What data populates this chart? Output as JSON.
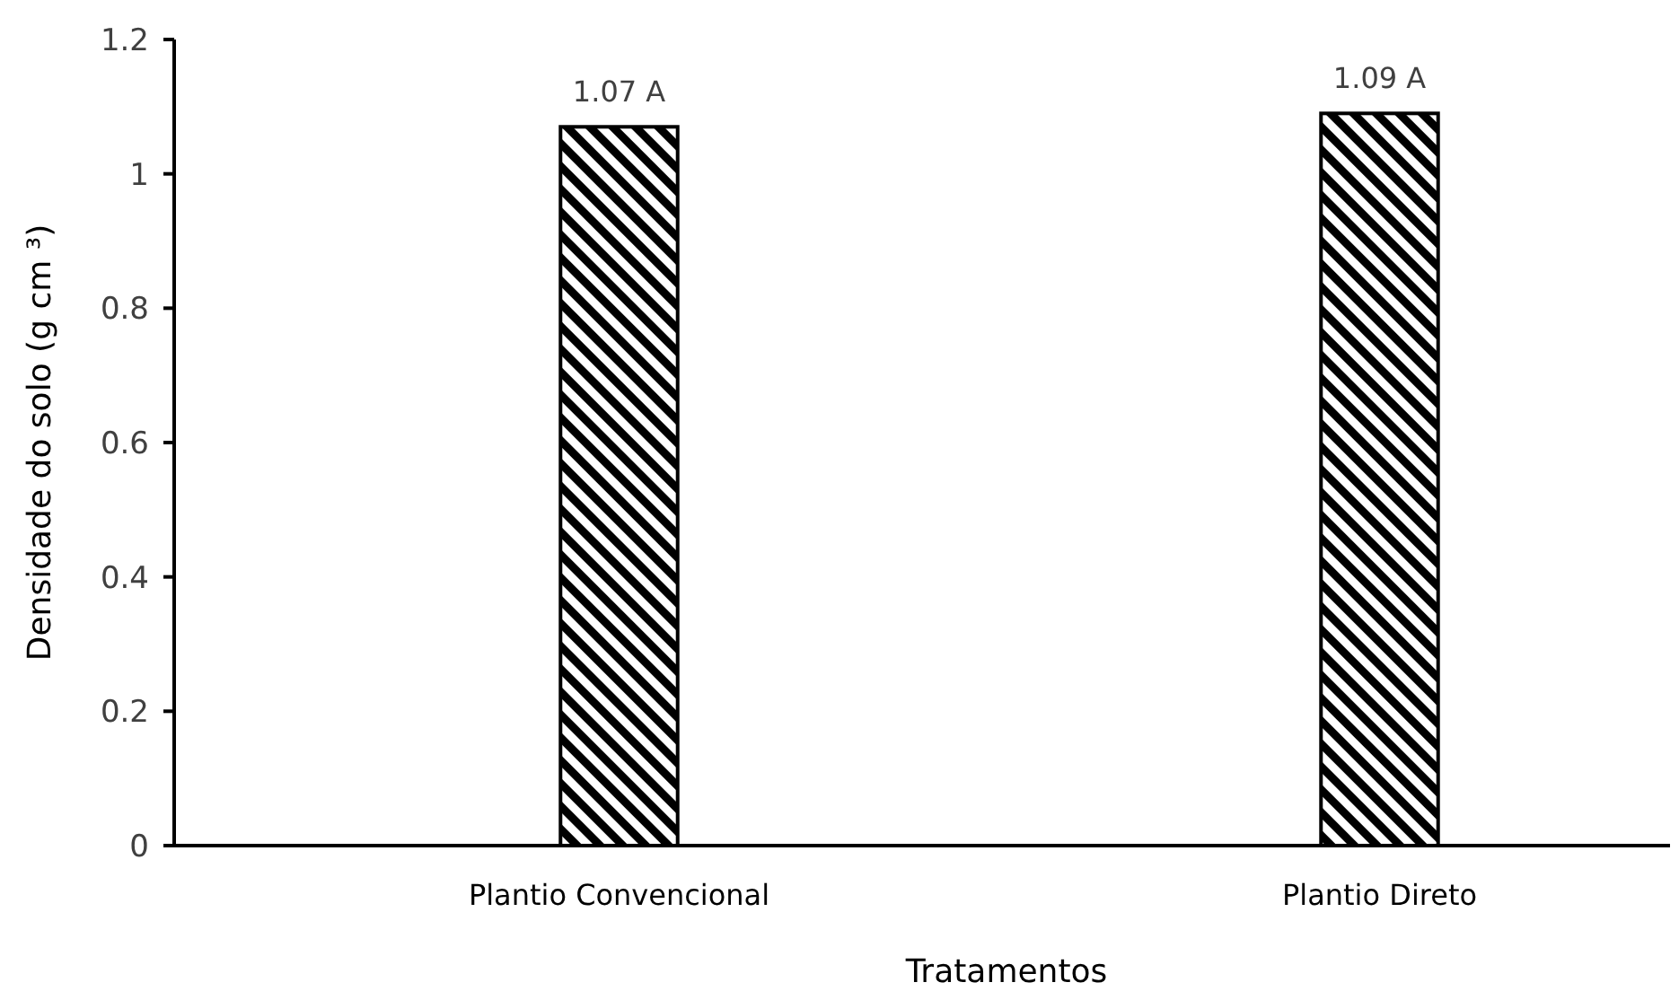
{
  "chart_data": {
    "type": "bar",
    "xlabel": "Tratamentos",
    "ylabel": "Densidade do solo (g cm ³)",
    "categories": [
      "Plantio Convencional",
      "Plantio Direto"
    ],
    "values": [
      1.07,
      1.09
    ],
    "color": "#000000",
    "value_labels": [
      "1.07 A",
      "1.09 A"
    ],
    "ylim": [
      0,
      1.2
    ],
    "yticks": [
      0,
      0.2,
      0.4,
      0.6,
      0.8,
      1,
      1.2
    ],
    "grid": false
  }
}
